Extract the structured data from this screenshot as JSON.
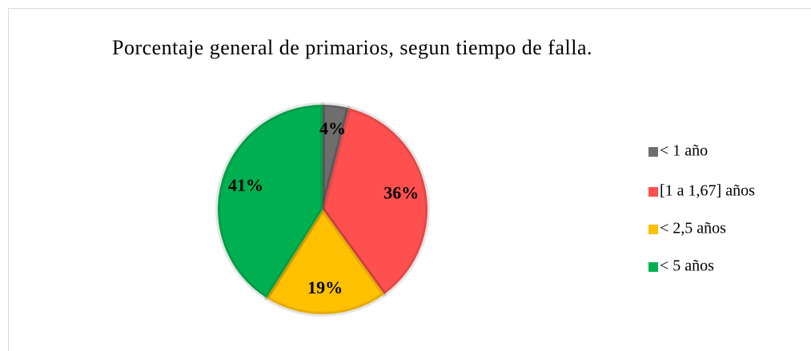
{
  "chart_data": {
    "type": "pie",
    "title": "Porcentaje general de primarios, segun tiempo de falla.",
    "categories": [
      "< 1 año",
      "[1 a 1,67] años",
      "< 2,5 años",
      "< 5 años"
    ],
    "values": [
      4,
      36,
      19,
      41
    ],
    "value_labels": [
      "4%",
      "36%",
      "19%",
      "41%"
    ],
    "colors": [
      "#6e6e6e",
      "#ff5050",
      "#ffc000",
      "#00b050"
    ],
    "legend": "right"
  }
}
